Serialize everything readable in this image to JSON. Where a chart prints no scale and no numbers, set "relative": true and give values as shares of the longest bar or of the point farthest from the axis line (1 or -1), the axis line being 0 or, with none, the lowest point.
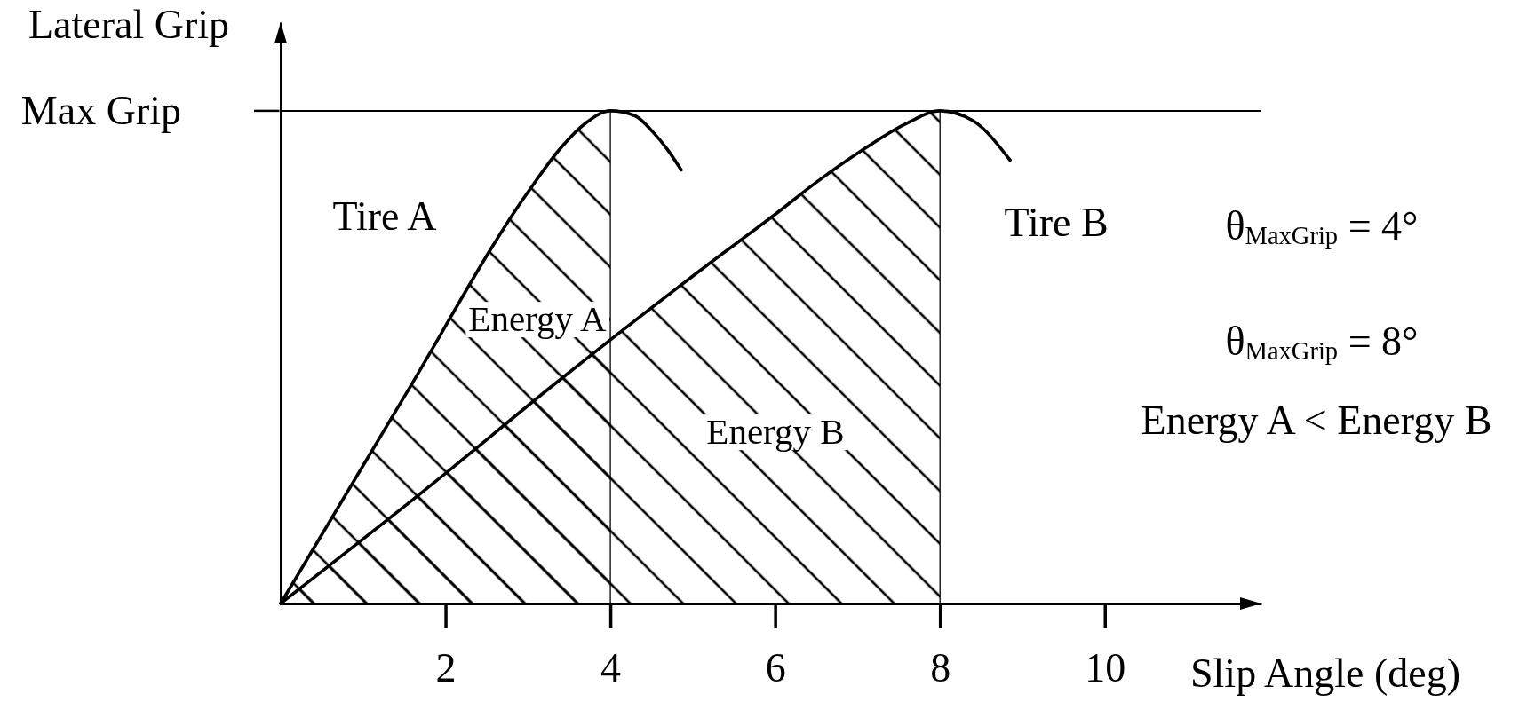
{
  "chart_data": {
    "type": "line",
    "relative": true,
    "xlabel": "Slip Angle (deg)",
    "ylabel": "Lateral Grip",
    "xlim": [
      0,
      11.9
    ],
    "xticks": [
      2,
      4,
      6,
      8,
      10
    ],
    "series": [
      {
        "type": "area",
        "color": "#000000",
        "x": [
          0,
          1.5,
          3,
          3.4,
          3.7,
          4
        ],
        "values": [
          0,
          0.42,
          0.835,
          0.925,
          0.975,
          1
        ]
      },
      {
        "type": "area",
        "color": "#000000",
        "x": [
          0,
          1.8,
          3.35,
          5.2,
          6,
          6.5,
          7.1,
          7.6,
          8
        ],
        "values": [
          0,
          0.237,
          0.449,
          0.69,
          0.79,
          0.855,
          0.925,
          0.975,
          1
        ]
      },
      {
        "color": "#000000",
        "x": [
          0,
          1.5,
          3,
          3.4,
          3.7,
          4,
          4.3,
          4.5,
          4.7,
          4.86
        ],
        "values": [
          0,
          0.42,
          0.835,
          0.925,
          0.975,
          1,
          0.99,
          0.96,
          0.92,
          0.88
        ]
      },
      {
        "color": "#000000",
        "x": [
          0,
          1.8,
          3.35,
          5.2,
          6,
          6.5,
          7.1,
          7.6,
          8,
          8.4,
          8.85
        ],
        "values": [
          0,
          0.237,
          0.449,
          0.69,
          0.79,
          0.855,
          0.925,
          0.975,
          1,
          0.98,
          0.9
        ]
      }
    ],
    "ref_lines": [
      {
        "axis": "y",
        "value": 1,
        "label": "Max Grip"
      },
      {
        "axis": "x",
        "value": 4
      },
      {
        "axis": "x",
        "value": 8
      }
    ],
    "annotations": [
      "Tire A",
      "Tire B",
      "Energy A",
      "Energy B",
      "θ$_{MaxGrip}$ = 4°",
      "θ$_{MaxGrip}$ = 8°",
      "Energy A < Energy B"
    ]
  }
}
